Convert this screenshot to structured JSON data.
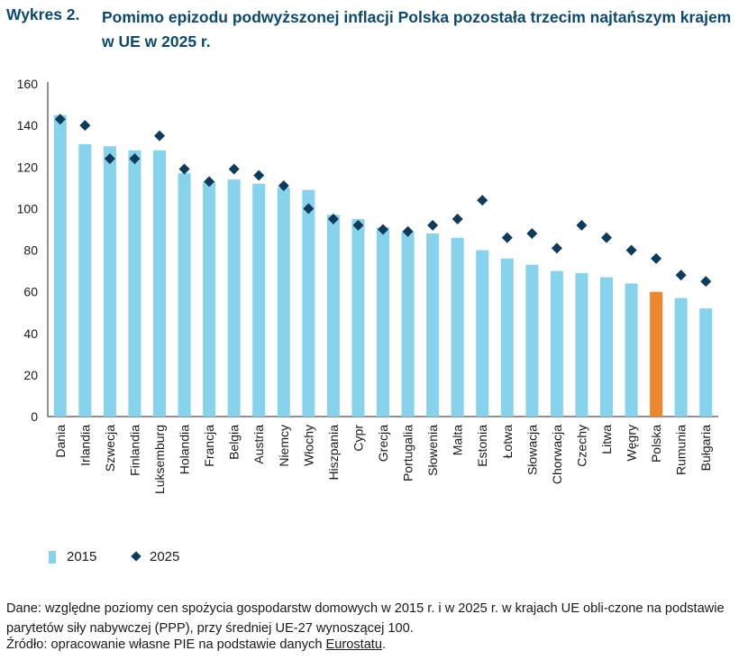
{
  "header": {
    "figure_label": "Wykres 2.",
    "title": "Pomimo epizodu podwyższonej inflacji Polska pozostała trzecim najtańszym krajem w UE w 2025 r."
  },
  "legend": {
    "items": [
      {
        "label": "2015",
        "marker": "bar"
      },
      {
        "label": "2025",
        "marker": "diamond"
      }
    ]
  },
  "footer": {
    "note": "Dane: względne poziomy cen spożycia gospodarstw domowych w 2015 r. i w 2025 r. w krajach UE obli-czone na podstawie parytetów siły nabywczej (PPP), przy średniej UE-27 wynoszącej 100.",
    "source_prefix": "Źródło: opracowanie własne PIE na podstawie danych ",
    "source_link": "Eurostatu",
    "source_suffix": "."
  },
  "colors": {
    "bar_2015": "#87d3ee",
    "bar_highlight": "#ef8730",
    "marker_2025": "#0d3b5c",
    "title": "#0b4a6e"
  },
  "chart_data": {
    "type": "bar",
    "categories": [
      "Dania",
      "Irlandia",
      "Szwecja",
      "Finlandia",
      "Luksemburg",
      "Holandia",
      "Francja",
      "Belgia",
      "Austria",
      "Niemcy",
      "Włochy",
      "Hiszpania",
      "Cypr",
      "Grecja",
      "Portugalia",
      "Słowenia",
      "Malta",
      "Estonia",
      "Łotwa",
      "Słowacja",
      "Chorwacja",
      "Czechy",
      "Litwa",
      "Węgry",
      "Polska",
      "Rumunia",
      "Bułgaria"
    ],
    "series": [
      {
        "name": "2015",
        "kind": "bar",
        "values": [
          145,
          131,
          130,
          128,
          128,
          117,
          113,
          114,
          112,
          110,
          109,
          97,
          95,
          91,
          89,
          88,
          86,
          80,
          76,
          73,
          70,
          69,
          67,
          64,
          60,
          57,
          52
        ],
        "highlight": "Polska"
      },
      {
        "name": "2025",
        "kind": "marker",
        "values": [
          143,
          140,
          124,
          124,
          135,
          119,
          113,
          119,
          116,
          111,
          100,
          95,
          92,
          90,
          89,
          92,
          95,
          104,
          86,
          88,
          81,
          92,
          86,
          80,
          76,
          68,
          65
        ]
      }
    ],
    "title": "",
    "xlabel": "",
    "ylabel": "",
    "ylim": [
      0,
      160
    ],
    "yticks": [
      0,
      20,
      40,
      60,
      80,
      100,
      120,
      140,
      160
    ],
    "grid": false,
    "legend_position": "bottom-left"
  }
}
